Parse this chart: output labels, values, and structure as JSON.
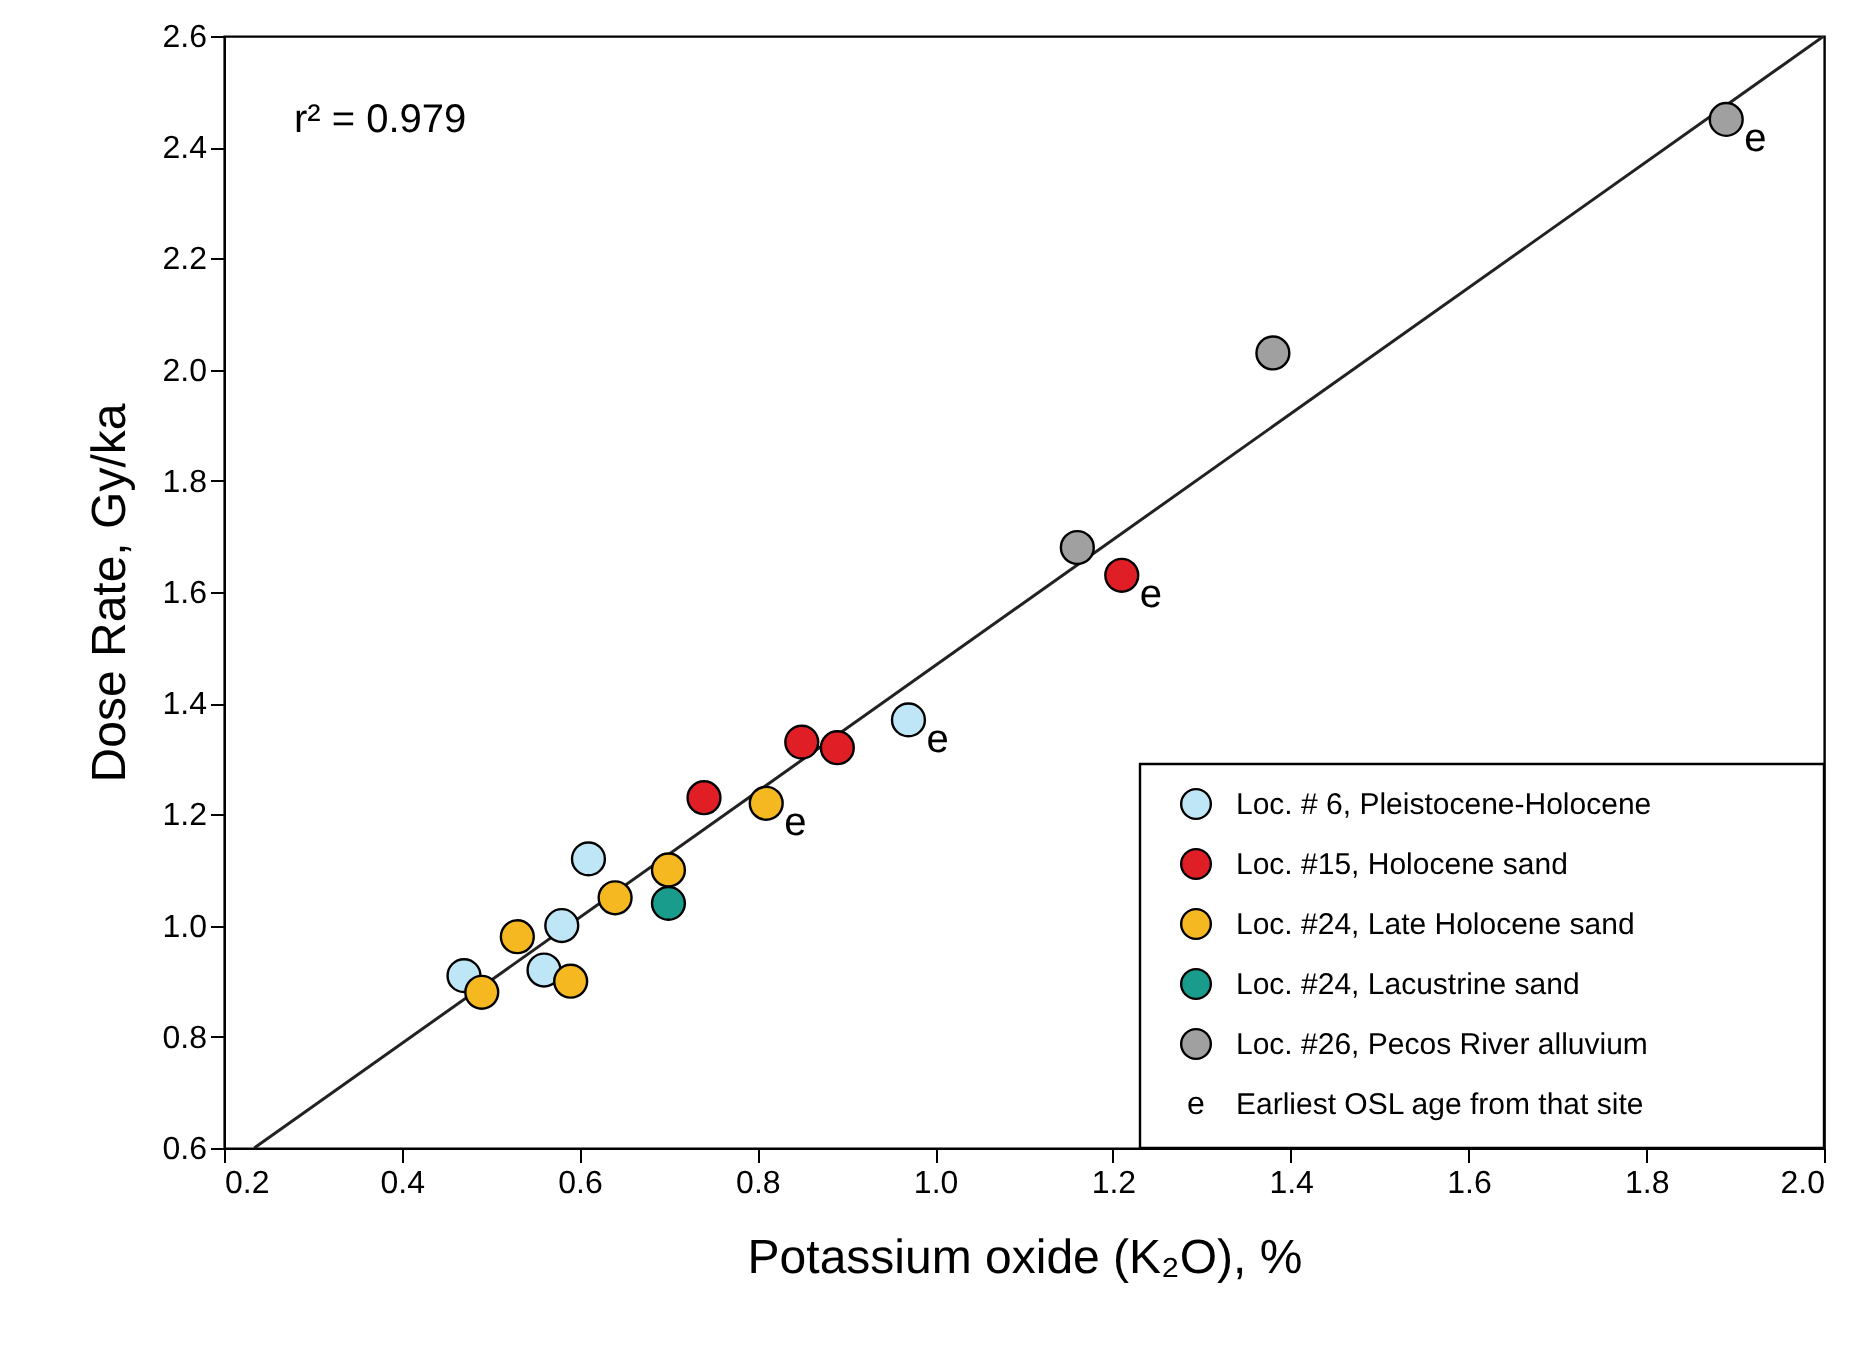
{
  "chart_data": {
    "type": "scatter",
    "xlabel": "Potassium oxide (K₂O), %",
    "ylabel": "Dose Rate, Gy/ka",
    "xlim": [
      0.2,
      2.0
    ],
    "xticks": [
      0.2,
      0.4,
      0.6,
      0.8,
      {
        "value": 1,
        "label": "1.0"
      },
      1.2,
      1.4,
      1.6,
      1.8,
      {
        "value": 2,
        "label": "2.0"
      }
    ],
    "ylim": [
      0.6,
      2.6
    ],
    "yticks": [
      0.6,
      0.8,
      {
        "value": 1,
        "label": "1.0"
      },
      1.2,
      1.4,
      1.6,
      1.8,
      {
        "value": 2,
        "label": "2.0"
      },
      2.2,
      2.4,
      2.6
    ],
    "grid": false,
    "legend": "bottom right",
    "marker": "circle",
    "series": [
      {
        "name": "Loc. # 6, Pleistocene-Holocene",
        "color": "#bfe6f7",
        "x": [
          0.47,
          0.56,
          0.58,
          0.61,
          0.97
        ],
        "values": [
          0.91,
          0.92,
          1.0,
          1.12,
          1.37
        ]
      },
      {
        "name": "Loc. #15, Holocene sand",
        "color": "#e01e26",
        "x": [
          0.74,
          0.85,
          0.89,
          1.21
        ],
        "values": [
          1.23,
          1.33,
          1.32,
          1.63
        ]
      },
      {
        "name": "Loc. #24, Late Holocene sand",
        "color": "#f5b821",
        "x": [
          0.49,
          0.53,
          0.59,
          0.64,
          0.7,
          0.81
        ],
        "values": [
          0.88,
          0.98,
          0.9,
          1.05,
          1.1,
          1.22
        ]
      },
      {
        "name": "Loc. #24, Lacustrine sand",
        "color": "#1a9c8c",
        "x": [
          0.7
        ],
        "values": [
          1.04
        ]
      },
      {
        "name": "Loc. #26, Pecos River alluvium",
        "color": "#a0a0a0",
        "x": [
          1.16,
          1.38,
          1.89
        ],
        "values": [
          1.68,
          2.03,
          2.45
        ]
      },
      {
        "type": "line",
        "marker": "none",
        "color": "#222222",
        "x": [
          0.234,
          2.0
        ],
        "values": [
          0.6,
          2.6
        ]
      }
    ],
    "annotations": [
      "r² = 0.979",
      "e Earliest OSL age from that site",
      {
        "text": "e",
        "x": 0.81,
        "y": 1.22
      },
      {
        "text": "e",
        "x": 0.97,
        "y": 1.37
      },
      {
        "text": "e",
        "x": 1.21,
        "y": 1.63
      },
      {
        "text": "e",
        "x": 1.89,
        "y": 2.45
      }
    ]
  }
}
